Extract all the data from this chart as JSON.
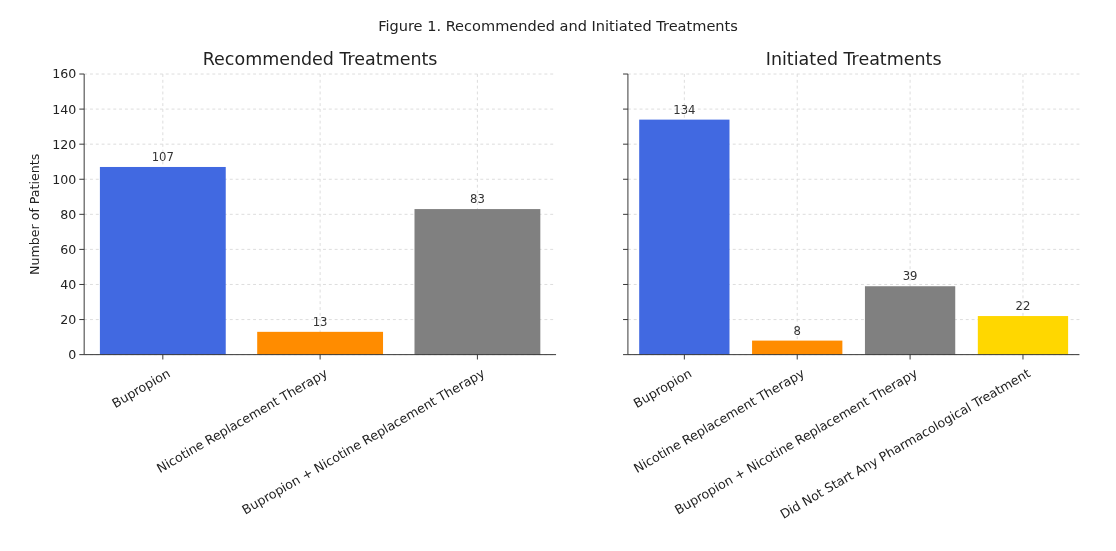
{
  "chart_data": [
    {
      "type": "bar",
      "title": "Recommended Treatments",
      "annotations": [
        "Figure 1. Recommended and Initiated Treatments"
      ],
      "ylabel": "Number of Patients",
      "categories": [
        "Bupropion",
        "Nicotine Replacement Therapy",
        "Bupropion + Nicotine Replacement Therapy"
      ],
      "values": [
        107,
        13,
        83
      ],
      "colors": [
        "#4169e1",
        "#ff8c00",
        "#808080"
      ],
      "ylim": [
        0,
        160
      ],
      "yticks": [
        0,
        20,
        40,
        60,
        80,
        100,
        120,
        140,
        160
      ],
      "grid": true,
      "data_labels": true
    },
    {
      "type": "bar",
      "title": "Initiated Treatments",
      "categories": [
        "Bupropion",
        "Nicotine Replacement Therapy",
        "Bupropion + Nicotine Replacement Therapy",
        "Did Not Start Any Pharmacological Treatment"
      ],
      "values": [
        134,
        8,
        39,
        22
      ],
      "colors": [
        "#4169e1",
        "#ff8c00",
        "#808080",
        "#ffd700"
      ],
      "ylim": [
        0,
        160
      ],
      "yticks": [
        0,
        20,
        40,
        60,
        80,
        100,
        120,
        140,
        160
      ],
      "grid": true,
      "data_labels": true,
      "tick_labels": "x"
    }
  ]
}
